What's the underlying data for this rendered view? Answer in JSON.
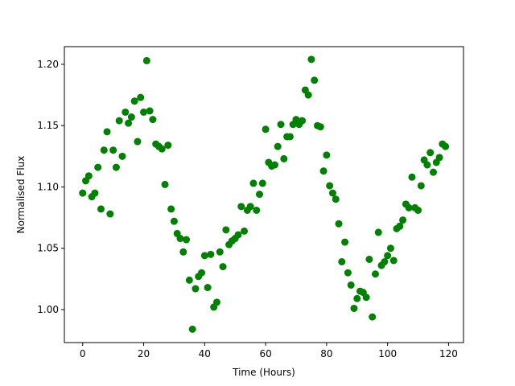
{
  "chart_data": {
    "type": "scatter",
    "xlabel": "Time (Hours)",
    "ylabel": "Normalised Flux",
    "x": [
      0,
      1,
      2,
      3,
      4,
      5,
      6,
      7,
      8,
      9,
      10,
      11,
      12,
      13,
      14,
      15,
      16,
      17,
      18,
      19,
      20,
      21,
      22,
      23,
      24,
      25,
      26,
      27,
      28,
      29,
      30,
      31,
      32,
      33,
      34,
      35,
      36,
      37,
      38,
      39,
      40,
      41,
      42,
      43,
      44,
      45,
      46,
      47,
      48,
      49,
      50,
      51,
      52,
      53,
      54,
      55,
      56,
      57,
      58,
      59,
      60,
      61,
      62,
      63,
      64,
      65,
      66,
      67,
      68,
      69,
      70,
      71,
      72,
      73,
      74,
      75,
      76,
      77,
      78,
      79,
      80,
      81,
      82,
      83,
      84,
      85,
      86,
      87,
      88,
      89,
      90,
      91,
      92,
      93,
      94,
      95,
      96,
      97,
      98,
      99,
      100,
      101,
      102,
      103,
      104,
      105,
      106,
      107,
      108,
      109,
      110,
      111,
      112,
      113,
      114,
      115,
      116,
      117,
      118,
      119
    ],
    "series": [
      {
        "color": "#008000",
        "values": [
          1.095,
          1.105,
          1.109,
          1.092,
          1.095,
          1.116,
          1.082,
          1.13,
          1.145,
          1.078,
          1.13,
          1.116,
          1.154,
          1.125,
          1.161,
          1.152,
          1.157,
          1.17,
          1.137,
          1.173,
          1.161,
          1.203,
          1.162,
          1.155,
          1.135,
          1.133,
          1.131,
          1.102,
          1.134,
          1.082,
          1.072,
          1.062,
          1.058,
          1.047,
          1.057,
          1.024,
          0.984,
          1.017,
          1.027,
          1.03,
          1.044,
          1.018,
          1.045,
          1.002,
          1.006,
          1.047,
          1.035,
          1.065,
          1.053,
          1.056,
          1.058,
          1.061,
          1.084,
          1.064,
          1.081,
          1.084,
          1.103,
          1.081,
          1.094,
          1.103,
          1.147,
          1.12,
          1.117,
          1.118,
          1.133,
          1.151,
          1.123,
          1.141,
          1.141,
          1.151,
          1.155,
          1.151,
          1.154,
          1.179,
          1.175,
          1.204,
          1.187,
          1.15,
          1.149,
          1.113,
          1.126,
          1.101,
          1.095,
          1.09,
          1.07,
          1.039,
          1.055,
          1.03,
          1.02,
          1.001,
          1.009,
          1.015,
          1.014,
          1.01,
          1.041,
          0.994,
          1.029,
          1.063,
          1.036,
          1.039,
          1.044,
          1.05,
          1.04,
          1.066,
          1.068,
          1.073,
          1.086,
          1.083,
          1.108,
          1.083,
          1.081,
          1.101,
          1.122,
          1.118,
          1.128,
          1.112,
          1.12,
          1.124,
          1.135,
          1.133
        ]
      }
    ],
    "xlim": [
      -6.0,
      124.9
    ],
    "ylim": [
      0.9731,
      1.2144
    ],
    "xticks": [
      0,
      20,
      40,
      60,
      80,
      100,
      120
    ],
    "yticks": [
      {
        "value": 1.0,
        "label": "1.00"
      },
      1.05,
      {
        "value": 1.1,
        "label": "1.10"
      },
      1.15,
      {
        "value": 1.2,
        "label": "1.20"
      }
    ]
  }
}
